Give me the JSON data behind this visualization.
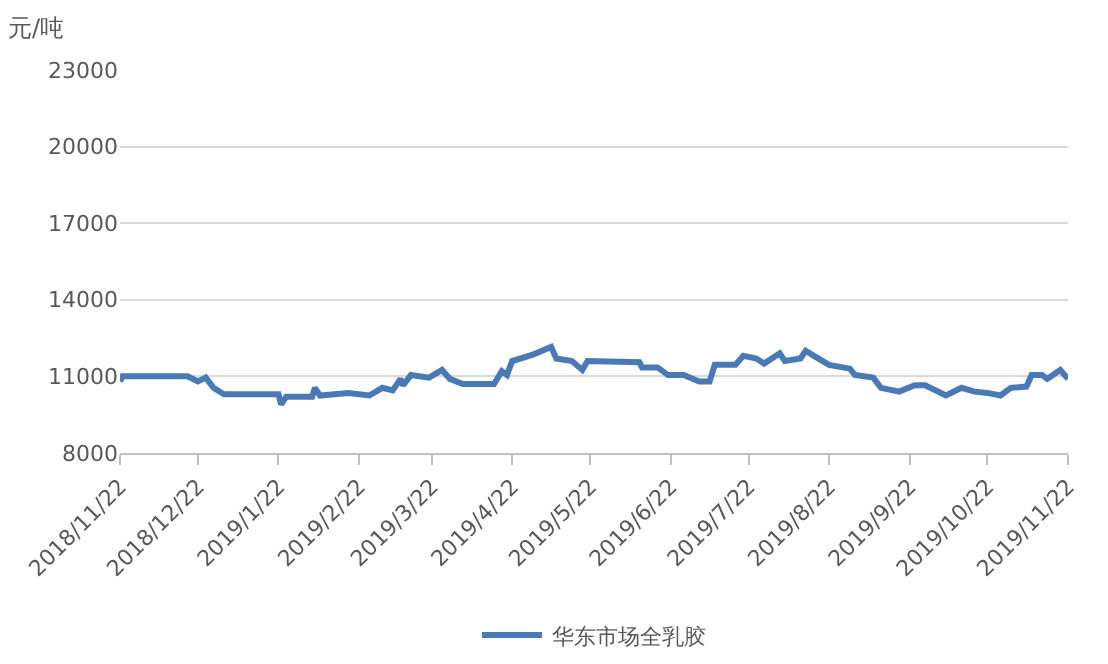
{
  "chart_data": {
    "type": "line",
    "ylabel": "元/吨",
    "x": [
      "2018-11-22",
      "2018-11-23",
      "2018-12-18",
      "2018-12-22",
      "2018-12-25",
      "2018-12-28",
      "2019-01-01",
      "2019-01-22",
      "2019-01-23",
      "2019-01-25",
      "2019-02-04",
      "2019-02-05",
      "2019-02-07",
      "2019-02-18",
      "2019-02-26",
      "2019-03-03",
      "2019-03-07",
      "2019-03-10",
      "2019-03-11",
      "2019-03-14",
      "2019-03-21",
      "2019-03-26",
      "2019-03-29",
      "2019-04-03",
      "2019-04-15",
      "2019-04-18",
      "2019-04-20",
      "2019-04-22",
      "2019-04-30",
      "2019-05-07",
      "2019-05-09",
      "2019-05-15",
      "2019-05-19",
      "2019-05-21",
      "2019-06-10",
      "2019-06-11",
      "2019-06-17",
      "2019-06-21",
      "2019-06-27",
      "2019-07-03",
      "2019-07-07",
      "2019-07-09",
      "2019-07-17",
      "2019-07-20",
      "2019-07-25",
      "2019-07-28",
      "2019-08-03",
      "2019-08-05",
      "2019-08-11",
      "2019-08-13",
      "2019-08-17",
      "2019-08-22",
      "2019-08-30",
      "2019-09-01",
      "2019-09-08",
      "2019-09-11",
      "2019-09-18",
      "2019-09-24",
      "2019-09-28",
      "2019-10-06",
      "2019-10-12",
      "2019-10-17",
      "2019-10-22",
      "2019-10-27",
      "2019-10-31",
      "2019-11-06",
      "2019-11-08",
      "2019-11-12",
      "2019-11-14",
      "2019-11-19",
      "2019-11-22"
    ],
    "series": [
      {
        "name": "华东市场全乳胶",
        "color": "#4a7ab5",
        "values": [
          10800,
          11000,
          11000,
          10800,
          10950,
          10550,
          10300,
          10300,
          9900,
          10200,
          10200,
          10550,
          10250,
          10350,
          10250,
          10550,
          10450,
          10900,
          10650,
          11050,
          10950,
          11250,
          10900,
          10700,
          10700,
          11200,
          11050,
          11600,
          11850,
          12150,
          11700,
          11600,
          11250,
          11600,
          11550,
          11350,
          11350,
          11050,
          11050,
          10800,
          10800,
          11450,
          11450,
          11800,
          11700,
          11500,
          11900,
          11600,
          11700,
          12000,
          11750,
          11450,
          11300,
          11050,
          10950,
          10550,
          10400,
          10650,
          10650,
          10250,
          10550,
          10400,
          10350,
          10250,
          10550,
          10600,
          11050,
          11050,
          10900,
          11250,
          10900
        ]
      }
    ],
    "xlim": [
      "2018-11-22",
      "2019-11-22"
    ],
    "xticks": [
      {
        "value": "2018-11-22",
        "label": "2018/11/22"
      },
      {
        "value": "2018-12-22",
        "label": "2018/12/22"
      },
      {
        "value": "2019-01-22",
        "label": "2019/1/22"
      },
      {
        "value": "2019-02-22",
        "label": "2019/2/22"
      },
      {
        "value": "2019-03-22",
        "label": "2019/3/22"
      },
      {
        "value": "2019-04-22",
        "label": "2019/4/22"
      },
      {
        "value": "2019-05-22",
        "label": "2019/5/22"
      },
      {
        "value": "2019-06-22",
        "label": "2019/6/22"
      },
      {
        "value": "2019-07-22",
        "label": "2019/7/22"
      },
      {
        "value": "2019-08-22",
        "label": "2019/8/22"
      },
      {
        "value": "2019-09-22",
        "label": "2019/9/22"
      },
      {
        "value": "2019-10-22",
        "label": "2019/10/22"
      },
      {
        "value": "2019-11-22",
        "label": "2019/11/22"
      }
    ],
    "ylim": [
      8000,
      23000
    ],
    "yticks": [
      8000,
      11000,
      14000,
      17000,
      20000,
      23000
    ],
    "grid": "y",
    "legend": "bottom",
    "marker": "none",
    "line_style": "solid"
  }
}
